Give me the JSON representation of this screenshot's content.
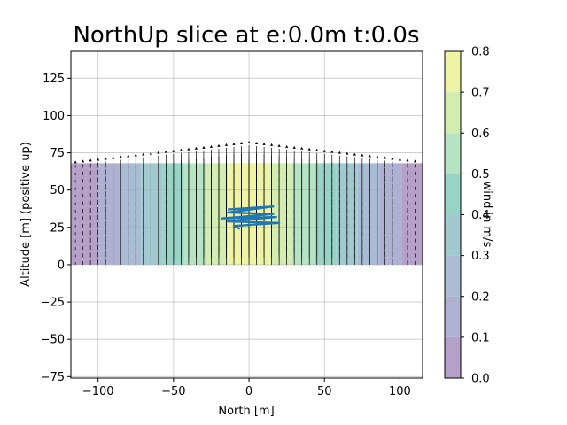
{
  "chart_data": {
    "type": "heatmap",
    "title": "NorthUp slice at e:0.0m t:0.0s",
    "xlabel": "North [$m$]",
    "xlabel_display": "North [m]",
    "ylabel": "Altitude [m] (positive up)",
    "xlim": [
      -118,
      115
    ],
    "ylim": [
      -76,
      143
    ],
    "x_ticks": [
      -100,
      -50,
      0,
      50,
      100
    ],
    "x_tick_labels": [
      "−100",
      "−50",
      "0",
      "50",
      "100"
    ],
    "y_ticks": [
      -75,
      -50,
      -25,
      0,
      25,
      50,
      75,
      100,
      125
    ],
    "y_tick_labels": [
      "−75",
      "−50",
      "−25",
      "0",
      "25",
      "50",
      "75",
      "100",
      "125"
    ],
    "grid": true,
    "field": {
      "name": "wind",
      "x_range": [
        -118,
        115
      ],
      "z_range": [
        0,
        68
      ],
      "wind_profile": "triangular, peak 0.8 at north 0, falling linearly to about 0.05 at |north| 120",
      "peak_wind": 0.8,
      "half_width": 115
    },
    "quiver": {
      "direction": "up",
      "x_spacing": 5,
      "z_spacing": 5,
      "color": "#000000"
    },
    "trajectory": {
      "color": "#1f77b4",
      "points": [
        [
          -14,
          37
        ],
        [
          16,
          39
        ],
        [
          -14,
          35
        ],
        [
          16,
          34
        ],
        [
          -18,
          31
        ],
        [
          18,
          32
        ],
        [
          -14,
          29
        ],
        [
          20,
          28
        ],
        [
          -10,
          26
        ],
        [
          -6,
          24
        ]
      ]
    },
    "colorbar": {
      "label": "wind in m/s",
      "levels": [
        0.0,
        0.1,
        0.2,
        0.3,
        0.4,
        0.5,
        0.6,
        0.7,
        0.8
      ],
      "tick_labels": [
        "0.0",
        "0.1",
        "0.2",
        "0.3",
        "0.4",
        "0.5",
        "0.6",
        "0.7",
        "0.8"
      ],
      "band_colors": [
        "#b5a1c8",
        "#afb1d2",
        "#a9bcd4",
        "#a1c9cf",
        "#98d3c6",
        "#b6e3c2",
        "#d2ecb2",
        "#eef3a6"
      ],
      "alpha": 0.6
    }
  }
}
